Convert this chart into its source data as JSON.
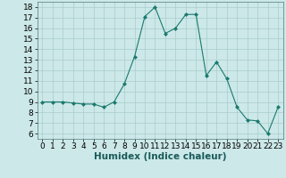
{
  "x": [
    0,
    1,
    2,
    3,
    4,
    5,
    6,
    7,
    8,
    9,
    10,
    11,
    12,
    13,
    14,
    15,
    16,
    17,
    18,
    19,
    20,
    21,
    22,
    23
  ],
  "y": [
    9.0,
    9.0,
    9.0,
    8.9,
    8.8,
    8.8,
    8.5,
    9.0,
    10.7,
    13.3,
    17.1,
    18.0,
    15.5,
    16.0,
    17.3,
    17.3,
    11.5,
    12.8,
    11.2,
    8.5,
    7.3,
    7.2,
    6.0,
    8.5
  ],
  "line_color": "#1a7a6e",
  "marker": "D",
  "marker_size": 2,
  "bg_color": "#cce8e8",
  "grid_color": "#aacccc",
  "xlabel": "Humidex (Indice chaleur)",
  "xlim": [
    -0.5,
    23.5
  ],
  "ylim": [
    5.5,
    18.5
  ],
  "yticks": [
    6,
    7,
    8,
    9,
    10,
    11,
    12,
    13,
    14,
    15,
    16,
    17,
    18
  ],
  "xticks": [
    0,
    1,
    2,
    3,
    4,
    5,
    6,
    7,
    8,
    9,
    10,
    11,
    12,
    13,
    14,
    15,
    16,
    17,
    18,
    19,
    20,
    21,
    22,
    23
  ],
  "tick_fontsize": 6.5,
  "xlabel_fontsize": 7.5
}
